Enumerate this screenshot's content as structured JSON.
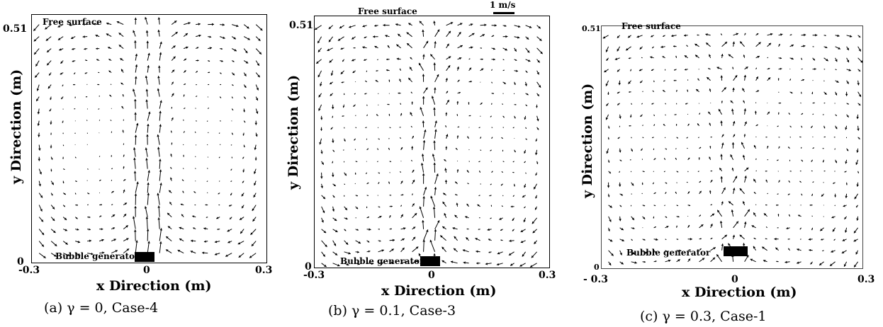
{
  "figure": {
    "panels": [
      {
        "id": "a",
        "caption": "(a)   γ = 0, Case-4",
        "xlabel": "x Direction (m)",
        "ylabel": "y Direction (m)",
        "x_ticks": [
          "-0.3",
          "0",
          "0.3"
        ],
        "y_ticks": [
          "0.51",
          "0"
        ],
        "free_surface_label": "Free surface",
        "bubble_generator_label": "Bubble generator",
        "gamma": 0,
        "case": "Case-4"
      },
      {
        "id": "b",
        "caption": "(b)   γ = 0.1, Case-3",
        "xlabel": "x Direction (m)",
        "ylabel": "y Direction (m)",
        "x_ticks": [
          "-0.3",
          "0",
          "0.3"
        ],
        "y_ticks": [
          "0.51",
          "0"
        ],
        "free_surface_label": "Free surface",
        "bubble_generator_label": "Bubble generator",
        "scale_label": "1 m/s",
        "gamma": 0.1,
        "case": "Case-3"
      },
      {
        "id": "c",
        "caption": "(c)   γ = 0.3, Case-1",
        "xlabel": "x Direction (m)",
        "ylabel": "y Direction (m)",
        "x_ticks": [
          "- 0.3",
          "0",
          "0.3"
        ],
        "y_ticks": [
          "0.51",
          "0"
        ],
        "free_surface_label": "Free surface",
        "bubble_generator_label": "Bubble generator",
        "gamma": 0.3,
        "case": "Case-1"
      }
    ],
    "colors": {
      "arrow": "#000000",
      "frame": "#000000",
      "background": "#ffffff"
    }
  }
}
